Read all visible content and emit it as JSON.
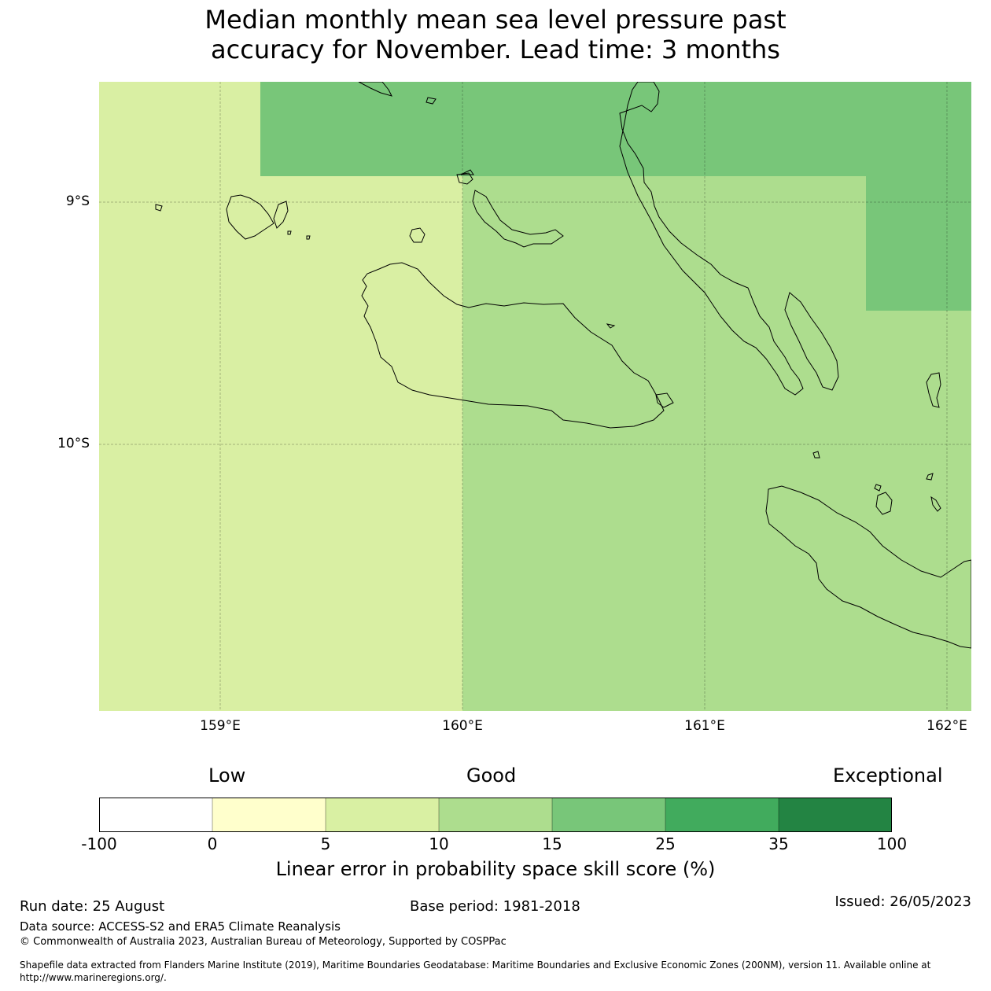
{
  "title_line1": "Median monthly mean sea level pressure past",
  "title_line2": "accuracy for November. Lead time: 3 months",
  "map": {
    "lat_labels": [
      "9°S",
      "10°S"
    ],
    "lon_labels": [
      "159°E",
      "160°E",
      "161°E",
      "162°E"
    ],
    "region_colors": {
      "cat_5_10": "#d9ef a3",
      "cat_10_15": "#addf8e",
      "cat_15_25": "#78c679"
    }
  },
  "legend": {
    "categories": [
      "Low",
      "Good",
      "Exceptional"
    ],
    "ticks": [
      "-100",
      "0",
      "5",
      "10",
      "15",
      "25",
      "35",
      "100"
    ],
    "colors": [
      "#ffffff",
      "#ffffcc",
      "#d9f0a3",
      "#addd8e",
      "#78c679",
      "#41ab5d",
      "#238443"
    ],
    "title": "Linear error in probability space skill score (%)"
  },
  "footer": {
    "run_date": "Run date: 25 August",
    "base_period": "Base period: 1981-2018",
    "issued": "Issued: 26/05/2023",
    "data_source": "Data source: ACCESS-S2 and ERA5 Climate Reanalysis",
    "copyright": "© Commonwealth of Australia 2023, Australian Bureau of Meteorology, Supported by COSPPac",
    "shapefile_line1": "Shapefile data extracted from Flanders Marine Institute (2019), Maritime Boundaries Geodatabase: Maritime Boundaries and Exclusive Economic Zones (200NM), version 11. Available online at",
    "shapefile_line2": "http://www.marineregions.org/."
  }
}
